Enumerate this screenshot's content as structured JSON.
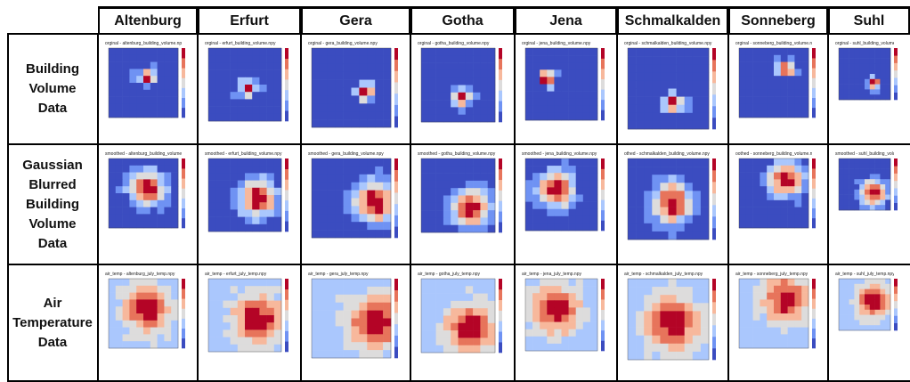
{
  "columns": [
    "Altenburg",
    "Erfurt",
    "Gera",
    "Gotha",
    "Jena",
    "Schmalkalden",
    "Sonneberg",
    "Suhl"
  ],
  "rows": [
    {
      "label": "Building\nVolume\nData",
      "key": "orig"
    },
    {
      "label": "Gaussian\nBlurred\nBuilding\nVolume\nData",
      "key": "smooth"
    },
    {
      "label": "Air\nTemperature\nData",
      "key": "temp"
    }
  ],
  "plot_titles": {
    "orig": [
      "orginal - altenburg_building_volume.npy",
      "orginal - erfurt_building_volume.npy",
      "orginal - gera_building_volume.npy",
      "orginal - gotha_building_volume.npy",
      "orginal - jena_building_volume.npy",
      "orginal - schmalkalden_building_volume.npy",
      "orginal - sonneberg_building_volume.npy",
      "orginal - suhl_building_volume.npy"
    ],
    "smooth": [
      "smoothed - altenburg_building_volume.npy",
      "smoothed - erfurt_building_volume.npy",
      "smoothed - gera_building_volume.npy",
      "smoothed - gotha_building_volume.npy",
      "smoothed - jena_building_volume.npy",
      "othed - schmalkalden_building_volume.npy",
      "oothed - sonneberg_building_volume.npy",
      "smoothed - suhl_building_volume.npy"
    ],
    "temp": [
      "air_temp - altenburg_july_temp.npy",
      "air_temp - erfurt_july_temp.npy",
      "air_temp - gera_july_temp.npy",
      "air_temp - gotha_july_temp.npy",
      "air_temp - jena_july_temp.npy",
      "air_temp - schmalkalden_july_temp.npy",
      "air_temp - sonneberg_july_temp.npy",
      "air_temp - suhl_july_temp.npy"
    ]
  },
  "colormap": [
    "#3b4cc0",
    "#6f92f3",
    "#aac7fd",
    "#dddcdc",
    "#f7b89c",
    "#e7745b",
    "#b40426"
  ],
  "hotspots": {
    "orig": [
      [
        3,
        4
      ],
      [
        4,
        4
      ],
      [
        4,
        5
      ],
      [
        5,
        4
      ],
      [
        3,
        2
      ],
      [
        5,
        4
      ],
      [
        2,
        5
      ],
      [
        5,
        5
      ]
    ],
    "smooth": [
      [
        3,
        4
      ],
      [
        4,
        5
      ],
      [
        4,
        6
      ],
      [
        5,
        5
      ],
      [
        3,
        3
      ],
      [
        4,
        4
      ],
      [
        2,
        5
      ],
      [
        5,
        5
      ]
    ],
    "temp": [
      [
        3,
        4
      ],
      [
        4,
        5
      ],
      [
        4,
        6
      ],
      [
        5,
        5
      ],
      [
        3,
        3
      ],
      [
        4,
        4
      ],
      [
        2,
        5
      ],
      [
        3,
        5
      ]
    ]
  }
}
